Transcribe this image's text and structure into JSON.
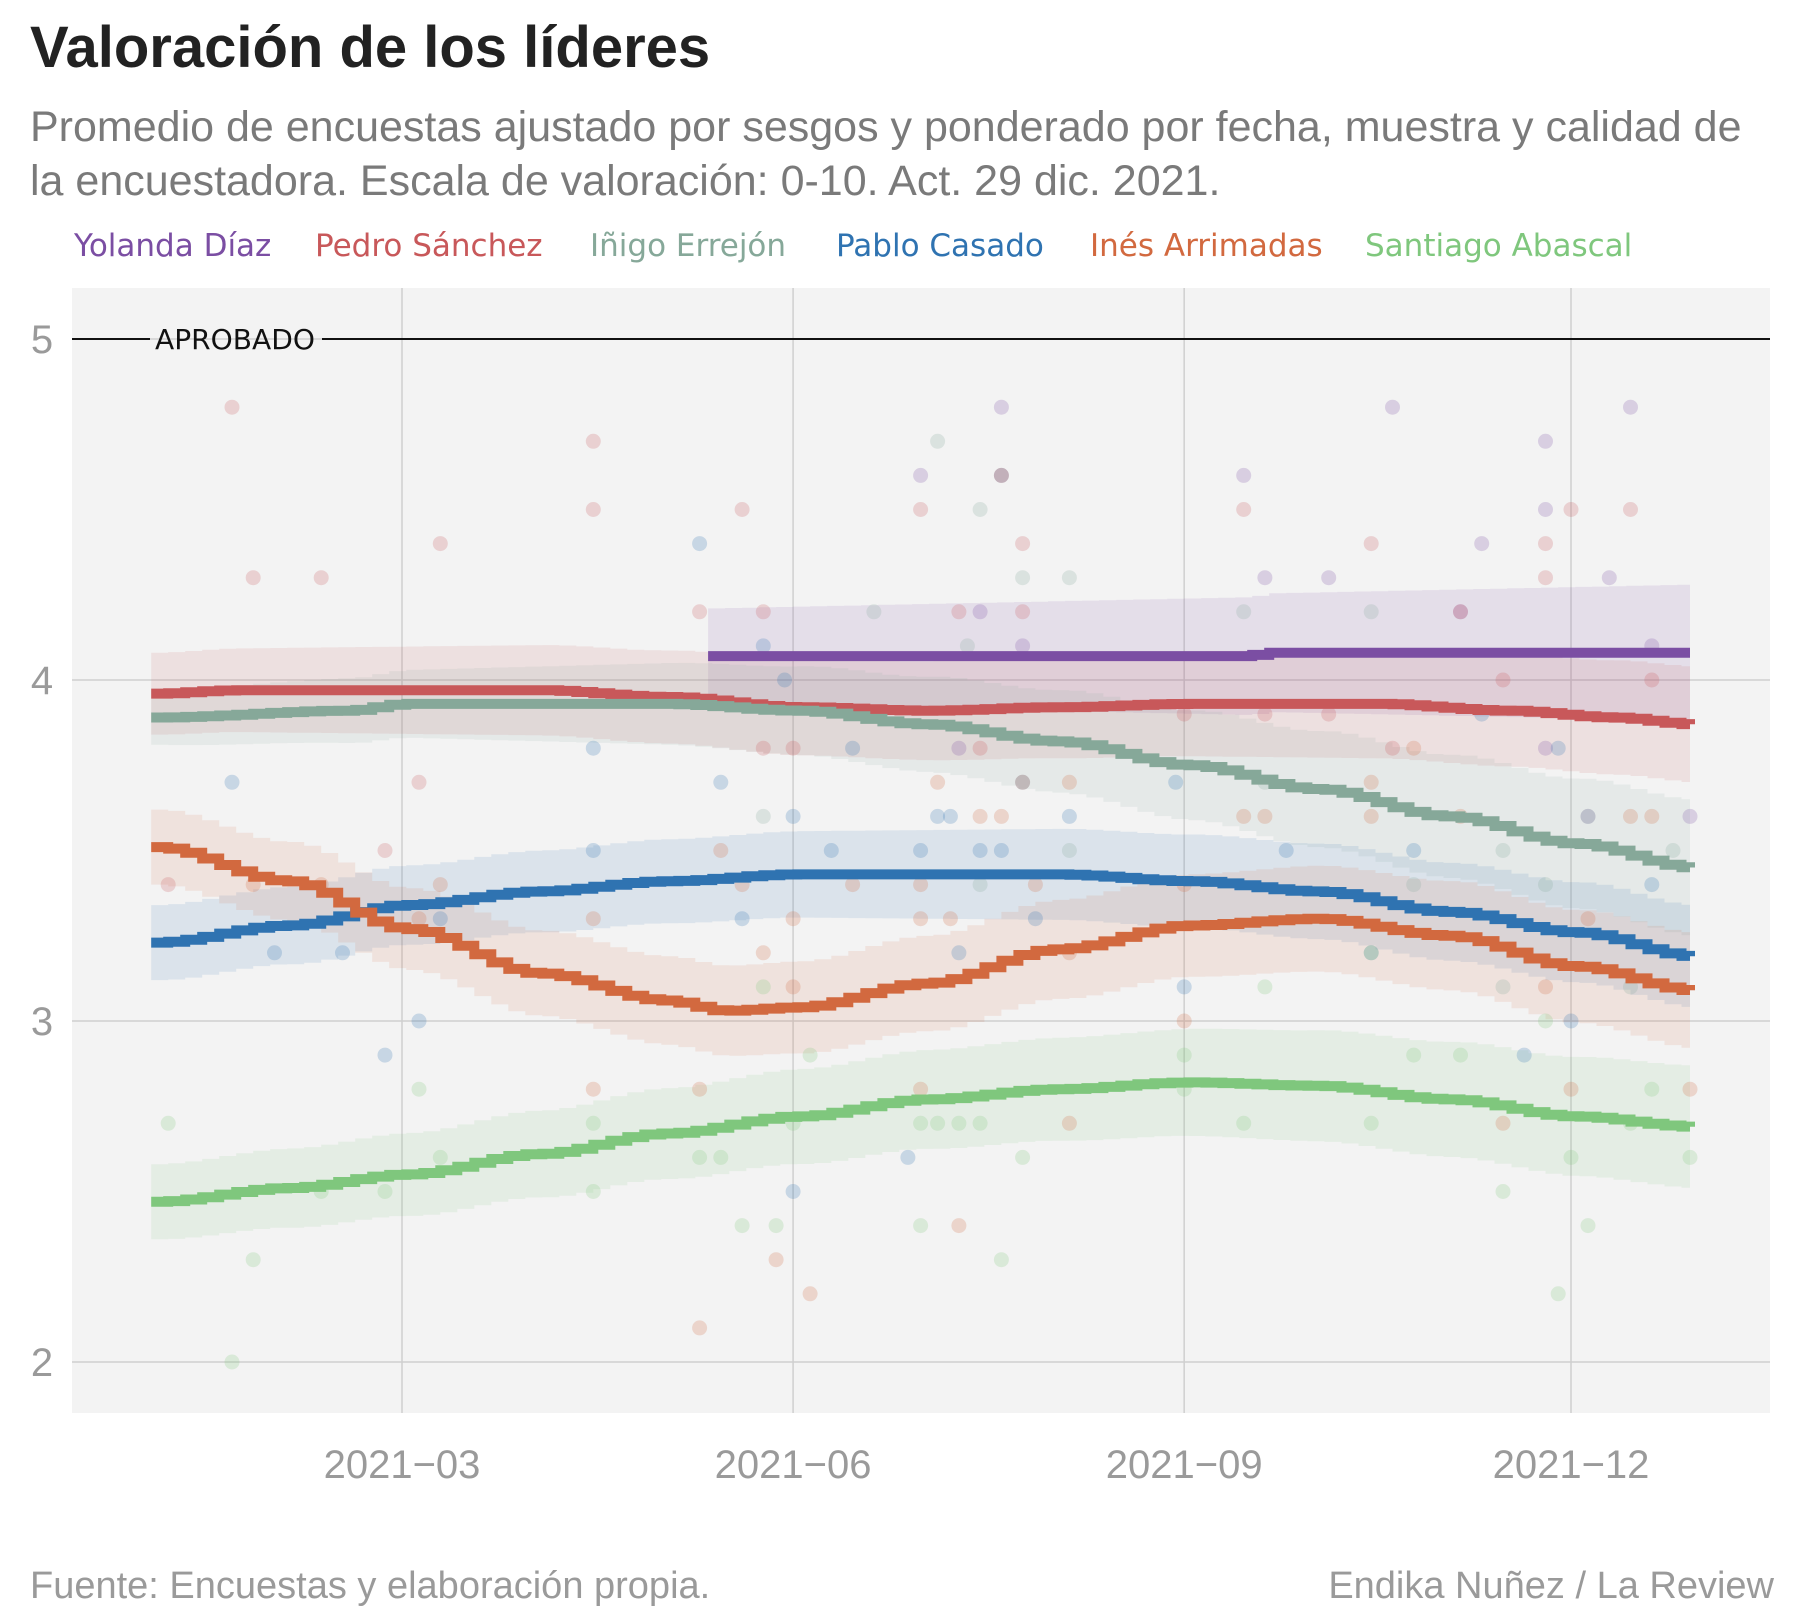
{
  "header": {
    "title": "Valoración de los líderes",
    "subtitle": "Promedio de encuestas ajustado por sesgos y ponderado por fecha, muestra y calidad de la encuestadora.  Escala de valoración: 0-10. Act. 29 dic. 2021."
  },
  "footer": {
    "source": "Fuente: Encuestas y elaboración propia.",
    "credit": "Endika Nuñez / La Review"
  },
  "chart_data": {
    "type": "line",
    "title": "Valoración de los líderes",
    "xlabel": "",
    "ylabel": "",
    "x_range": [
      "2021-01-01",
      "2021-12-31"
    ],
    "ylim": [
      1.85,
      5.15
    ],
    "x_ticks": [
      "2021−03",
      "2021−06",
      "2021−09",
      "2021−12"
    ],
    "y_ticks": [
      "2",
      "3",
      "4",
      "5"
    ],
    "grid": true,
    "legend_position": "top",
    "reference_line": {
      "y": 5,
      "label": "APROBADO"
    },
    "series": [
      {
        "name": "Yolanda Díaz",
        "color": "#7b4ea3",
        "trend": [
          [
            "2021-05-12",
            4.07
          ],
          [
            "2021-09-15",
            4.07
          ],
          [
            "2021-09-20",
            4.08
          ],
          [
            "2021-12-29",
            4.08
          ]
        ],
        "band": 0.14,
        "band_growth": 0.06,
        "polls": [
          [
            "2021-07-01",
            4.6
          ],
          [
            "2021-07-15",
            4.2
          ],
          [
            "2021-07-20",
            4.8
          ],
          [
            "2021-07-20",
            4.6
          ],
          [
            "2021-07-25",
            4.1
          ],
          [
            "2021-09-15",
            4.6
          ],
          [
            "2021-09-20",
            4.3
          ],
          [
            "2021-10-05",
            4.3
          ],
          [
            "2021-10-20",
            4.8
          ],
          [
            "2021-11-05",
            4.2
          ],
          [
            "2021-11-10",
            4.4
          ],
          [
            "2021-11-25",
            4.7
          ],
          [
            "2021-11-25",
            4.5
          ],
          [
            "2021-12-10",
            4.3
          ],
          [
            "2021-12-15",
            4.8
          ],
          [
            "2021-12-20",
            4.1
          ],
          [
            "2021-12-29",
            3.6
          ],
          [
            "2021-12-05",
            3.6
          ],
          [
            "2021-11-25",
            3.8
          ],
          [
            "2021-07-10",
            3.8
          ]
        ]
      },
      {
        "name": "Pedro Sánchez",
        "color": "#c8585a",
        "trend": [
          [
            "2021-01-01",
            3.96
          ],
          [
            "2021-01-20",
            3.97
          ],
          [
            "2021-04-01",
            3.97
          ],
          [
            "2021-05-01",
            3.95
          ],
          [
            "2021-06-01",
            3.92
          ],
          [
            "2021-07-01",
            3.91
          ],
          [
            "2021-08-01",
            3.92
          ],
          [
            "2021-09-01",
            3.93
          ],
          [
            "2021-10-15",
            3.93
          ],
          [
            "2021-11-15",
            3.91
          ],
          [
            "2021-12-10",
            3.89
          ],
          [
            "2021-12-29",
            3.87
          ]
        ],
        "band": 0.12,
        "band_growth": 0.05,
        "polls": [
          [
            "2021-01-20",
            4.8
          ],
          [
            "2021-01-25",
            4.3
          ],
          [
            "2021-02-10",
            4.3
          ],
          [
            "2021-03-10",
            4.4
          ],
          [
            "2021-04-15",
            4.7
          ],
          [
            "2021-04-15",
            4.5
          ],
          [
            "2021-05-10",
            4.2
          ],
          [
            "2021-05-20",
            4.5
          ],
          [
            "2021-05-25",
            4.2
          ],
          [
            "2021-07-01",
            4.5
          ],
          [
            "2021-07-10",
            4.2
          ],
          [
            "2021-07-20",
            4.6
          ],
          [
            "2021-07-25",
            4.4
          ],
          [
            "2021-07-25",
            4.2
          ],
          [
            "2021-09-15",
            4.5
          ],
          [
            "2021-10-15",
            4.4
          ],
          [
            "2021-11-05",
            4.2
          ],
          [
            "2021-11-25",
            4.4
          ],
          [
            "2021-11-25",
            4.3
          ],
          [
            "2021-12-01",
            4.5
          ],
          [
            "2021-12-15",
            4.5
          ],
          [
            "2021-12-20",
            4.0
          ],
          [
            "2021-09-01",
            3.9
          ],
          [
            "2021-09-20",
            3.9
          ],
          [
            "2021-10-05",
            3.9
          ],
          [
            "2021-10-20",
            3.8
          ],
          [
            "2021-06-01",
            3.8
          ],
          [
            "2021-05-25",
            3.8
          ],
          [
            "2021-07-15",
            3.8
          ],
          [
            "2021-11-15",
            4.0
          ],
          [
            "2021-01-05",
            3.4
          ],
          [
            "2021-02-25",
            3.5
          ],
          [
            "2021-03-05",
            3.7
          ]
        ]
      },
      {
        "name": "Iñigo Errejón",
        "color": "#86a899",
        "trend": [
          [
            "2021-01-01",
            3.89
          ],
          [
            "2021-02-15",
            3.91
          ],
          [
            "2021-03-01",
            3.93
          ],
          [
            "2021-05-01",
            3.93
          ],
          [
            "2021-06-01",
            3.91
          ],
          [
            "2021-07-01",
            3.87
          ],
          [
            "2021-08-01",
            3.82
          ],
          [
            "2021-09-01",
            3.75
          ],
          [
            "2021-10-01",
            3.68
          ],
          [
            "2021-11-01",
            3.6
          ],
          [
            "2021-12-01",
            3.52
          ],
          [
            "2021-12-29",
            3.45
          ]
        ],
        "band": 0.08,
        "band_growth": 0.12,
        "polls": [
          [
            "2021-06-20",
            4.2
          ],
          [
            "2021-07-05",
            4.7
          ],
          [
            "2021-07-15",
            4.5
          ],
          [
            "2021-07-20",
            4.6
          ],
          [
            "2021-07-25",
            4.3
          ],
          [
            "2021-08-05",
            4.3
          ],
          [
            "2021-07-12",
            4.1
          ],
          [
            "2021-09-15",
            4.2
          ],
          [
            "2021-10-15",
            4.2
          ],
          [
            "2021-05-25",
            3.6
          ],
          [
            "2021-08-05",
            3.5
          ],
          [
            "2021-09-20",
            3.7
          ],
          [
            "2021-11-15",
            3.5
          ],
          [
            "2021-12-05",
            3.6
          ],
          [
            "2021-12-25",
            3.5
          ],
          [
            "2021-11-25",
            3.4
          ],
          [
            "2021-10-25",
            3.4
          ],
          [
            "2021-07-15",
            3.4
          ],
          [
            "2021-12-15",
            3.1
          ],
          [
            "2021-11-15",
            3.1
          ]
        ]
      },
      {
        "name": "Pablo Casado",
        "color": "#2f73b1",
        "trend": [
          [
            "2021-01-01",
            3.23
          ],
          [
            "2021-02-01",
            3.28
          ],
          [
            "2021-03-01",
            3.34
          ],
          [
            "2021-04-01",
            3.38
          ],
          [
            "2021-05-01",
            3.41
          ],
          [
            "2021-06-01",
            3.43
          ],
          [
            "2021-08-01",
            3.43
          ],
          [
            "2021-09-01",
            3.41
          ],
          [
            "2021-10-01",
            3.38
          ],
          [
            "2021-11-01",
            3.32
          ],
          [
            "2021-12-01",
            3.26
          ],
          [
            "2021-12-29",
            3.19
          ]
        ],
        "band": 0.11,
        "band_growth": 0.04,
        "polls": [
          [
            "2021-01-20",
            3.7
          ],
          [
            "2021-02-15",
            3.2
          ],
          [
            "2021-01-30",
            3.2
          ],
          [
            "2021-02-25",
            2.9
          ],
          [
            "2021-03-05",
            3.0
          ],
          [
            "2021-03-10",
            3.3
          ],
          [
            "2021-04-15",
            3.5
          ],
          [
            "2021-04-15",
            3.8
          ],
          [
            "2021-05-10",
            4.4
          ],
          [
            "2021-05-15",
            3.7
          ],
          [
            "2021-05-20",
            3.3
          ],
          [
            "2021-05-25",
            4.1
          ],
          [
            "2021-05-30",
            4.0
          ],
          [
            "2021-06-01",
            3.6
          ],
          [
            "2021-06-15",
            3.8
          ],
          [
            "2021-06-10",
            3.5
          ],
          [
            "2021-06-01",
            2.5
          ],
          [
            "2021-07-01",
            3.5
          ],
          [
            "2021-07-05",
            3.6
          ],
          [
            "2021-07-08",
            3.6
          ],
          [
            "2021-07-10",
            3.2
          ],
          [
            "2021-07-15",
            3.5
          ],
          [
            "2021-07-20",
            3.5
          ],
          [
            "2021-07-25",
            3.7
          ],
          [
            "2021-07-28",
            3.3
          ],
          [
            "2021-08-05",
            3.6
          ],
          [
            "2021-06-28",
            2.6
          ],
          [
            "2021-08-30",
            3.7
          ],
          [
            "2021-09-01",
            3.1
          ],
          [
            "2021-09-25",
            3.5
          ],
          [
            "2021-10-15",
            3.2
          ],
          [
            "2021-10-25",
            3.5
          ],
          [
            "2021-11-10",
            3.9
          ],
          [
            "2021-11-20",
            2.9
          ],
          [
            "2021-12-01",
            3.0
          ],
          [
            "2021-11-28",
            3.8
          ],
          [
            "2021-12-20",
            3.4
          ]
        ]
      },
      {
        "name": "Inés Arrimadas",
        "color": "#d2693f",
        "trend": [
          [
            "2021-01-01",
            3.51
          ],
          [
            "2021-02-01",
            3.41
          ],
          [
            "2021-03-01",
            3.27
          ],
          [
            "2021-04-01",
            3.14
          ],
          [
            "2021-05-01",
            3.06
          ],
          [
            "2021-05-15",
            3.03
          ],
          [
            "2021-06-01",
            3.04
          ],
          [
            "2021-07-01",
            3.11
          ],
          [
            "2021-08-01",
            3.21
          ],
          [
            "2021-09-01",
            3.28
          ],
          [
            "2021-10-01",
            3.3
          ],
          [
            "2021-11-01",
            3.25
          ],
          [
            "2021-12-01",
            3.16
          ],
          [
            "2021-12-29",
            3.09
          ]
        ],
        "band": 0.11,
        "band_growth": 0.06,
        "polls": [
          [
            "2021-01-25",
            3.4
          ],
          [
            "2021-02-10",
            3.4
          ],
          [
            "2021-03-05",
            3.3
          ],
          [
            "2021-03-10",
            3.4
          ],
          [
            "2021-04-15",
            3.3
          ],
          [
            "2021-04-15",
            2.8
          ],
          [
            "2021-05-10",
            2.8
          ],
          [
            "2021-05-10",
            2.1
          ],
          [
            "2021-05-15",
            3.5
          ],
          [
            "2021-05-20",
            3.4
          ],
          [
            "2021-05-25",
            3.2
          ],
          [
            "2021-05-28",
            2.3
          ],
          [
            "2021-06-01",
            3.3
          ],
          [
            "2021-06-01",
            3.1
          ],
          [
            "2021-06-05",
            2.2
          ],
          [
            "2021-06-15",
            3.4
          ],
          [
            "2021-07-01",
            3.4
          ],
          [
            "2021-07-01",
            3.3
          ],
          [
            "2021-07-01",
            2.8
          ],
          [
            "2021-07-05",
            3.7
          ],
          [
            "2021-07-08",
            3.3
          ],
          [
            "2021-07-10",
            2.4
          ],
          [
            "2021-07-15",
            3.6
          ],
          [
            "2021-07-20",
            3.6
          ],
          [
            "2021-07-25",
            3.7
          ],
          [
            "2021-07-28",
            3.4
          ],
          [
            "2021-08-05",
            3.2
          ],
          [
            "2021-08-05",
            2.7
          ],
          [
            "2021-08-05",
            3.7
          ],
          [
            "2021-09-01",
            3.4
          ],
          [
            "2021-09-01",
            3.0
          ],
          [
            "2021-09-15",
            3.6
          ],
          [
            "2021-09-20",
            3.6
          ],
          [
            "2021-10-15",
            3.6
          ],
          [
            "2021-10-15",
            3.7
          ],
          [
            "2021-10-25",
            3.8
          ],
          [
            "2021-11-05",
            3.6
          ],
          [
            "2021-11-15",
            2.7
          ],
          [
            "2021-11-25",
            3.1
          ],
          [
            "2021-12-01",
            2.8
          ],
          [
            "2021-12-05",
            3.3
          ],
          [
            "2021-12-15",
            3.6
          ],
          [
            "2021-12-20",
            3.6
          ],
          [
            "2021-12-29",
            2.8
          ]
        ]
      },
      {
        "name": "Santiago Abascal",
        "color": "#7fc77d",
        "trend": [
          [
            "2021-01-01",
            2.47
          ],
          [
            "2021-02-01",
            2.51
          ],
          [
            "2021-03-01",
            2.55
          ],
          [
            "2021-04-01",
            2.61
          ],
          [
            "2021-05-01",
            2.67
          ],
          [
            "2021-06-01",
            2.72
          ],
          [
            "2021-07-01",
            2.77
          ],
          [
            "2021-08-01",
            2.8
          ],
          [
            "2021-09-01",
            2.82
          ],
          [
            "2021-10-01",
            2.81
          ],
          [
            "2021-11-01",
            2.77
          ],
          [
            "2021-12-01",
            2.72
          ],
          [
            "2021-12-29",
            2.69
          ]
        ],
        "band": 0.11,
        "band_growth": 0.07,
        "polls": [
          [
            "2021-01-05",
            2.7
          ],
          [
            "2021-01-25",
            2.3
          ],
          [
            "2021-01-20",
            2.0
          ],
          [
            "2021-02-10",
            2.5
          ],
          [
            "2021-02-25",
            2.5
          ],
          [
            "2021-03-05",
            2.8
          ],
          [
            "2021-03-10",
            2.6
          ],
          [
            "2021-04-15",
            2.7
          ],
          [
            "2021-04-15",
            2.5
          ],
          [
            "2021-05-10",
            2.6
          ],
          [
            "2021-05-15",
            2.6
          ],
          [
            "2021-05-20",
            2.4
          ],
          [
            "2021-05-25",
            3.1
          ],
          [
            "2021-05-28",
            2.4
          ],
          [
            "2021-06-01",
            2.7
          ],
          [
            "2021-06-05",
            2.9
          ],
          [
            "2021-07-01",
            2.7
          ],
          [
            "2021-07-01",
            2.4
          ],
          [
            "2021-07-05",
            2.7
          ],
          [
            "2021-07-10",
            2.7
          ],
          [
            "2021-07-15",
            2.7
          ],
          [
            "2021-07-20",
            2.3
          ],
          [
            "2021-07-25",
            2.6
          ],
          [
            "2021-09-01",
            2.9
          ],
          [
            "2021-09-01",
            2.8
          ],
          [
            "2021-09-15",
            2.7
          ],
          [
            "2021-09-20",
            3.1
          ],
          [
            "2021-10-15",
            3.2
          ],
          [
            "2021-10-15",
            2.7
          ],
          [
            "2021-10-25",
            2.9
          ],
          [
            "2021-11-05",
            2.9
          ],
          [
            "2021-11-15",
            2.5
          ],
          [
            "2021-11-25",
            3.0
          ],
          [
            "2021-11-28",
            2.2
          ],
          [
            "2021-12-01",
            2.6
          ],
          [
            "2021-12-05",
            2.4
          ],
          [
            "2021-12-15",
            2.7
          ],
          [
            "2021-12-20",
            2.8
          ],
          [
            "2021-12-29",
            2.6
          ]
        ]
      }
    ]
  }
}
